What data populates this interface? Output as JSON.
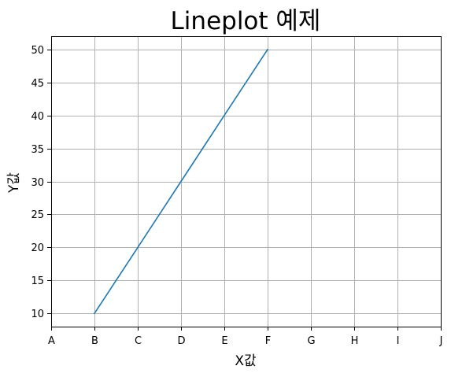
{
  "chart_data": {
    "type": "line",
    "title": "Lineplot 예제",
    "xlabel": "X값",
    "ylabel": "Y값",
    "x_categories": [
      "A",
      "B",
      "C",
      "D",
      "E",
      "F",
      "G",
      "H",
      "I",
      "J"
    ],
    "y_ticks": [
      10,
      15,
      20,
      25,
      30,
      35,
      40,
      45,
      50
    ],
    "ylim": [
      8,
      52
    ],
    "grid": true,
    "series": [
      {
        "x": [
          "B",
          "C",
          "D",
          "E",
          "F"
        ],
        "values": [
          10,
          20,
          30,
          40,
          50
        ],
        "color": "#1f77b4"
      }
    ]
  }
}
